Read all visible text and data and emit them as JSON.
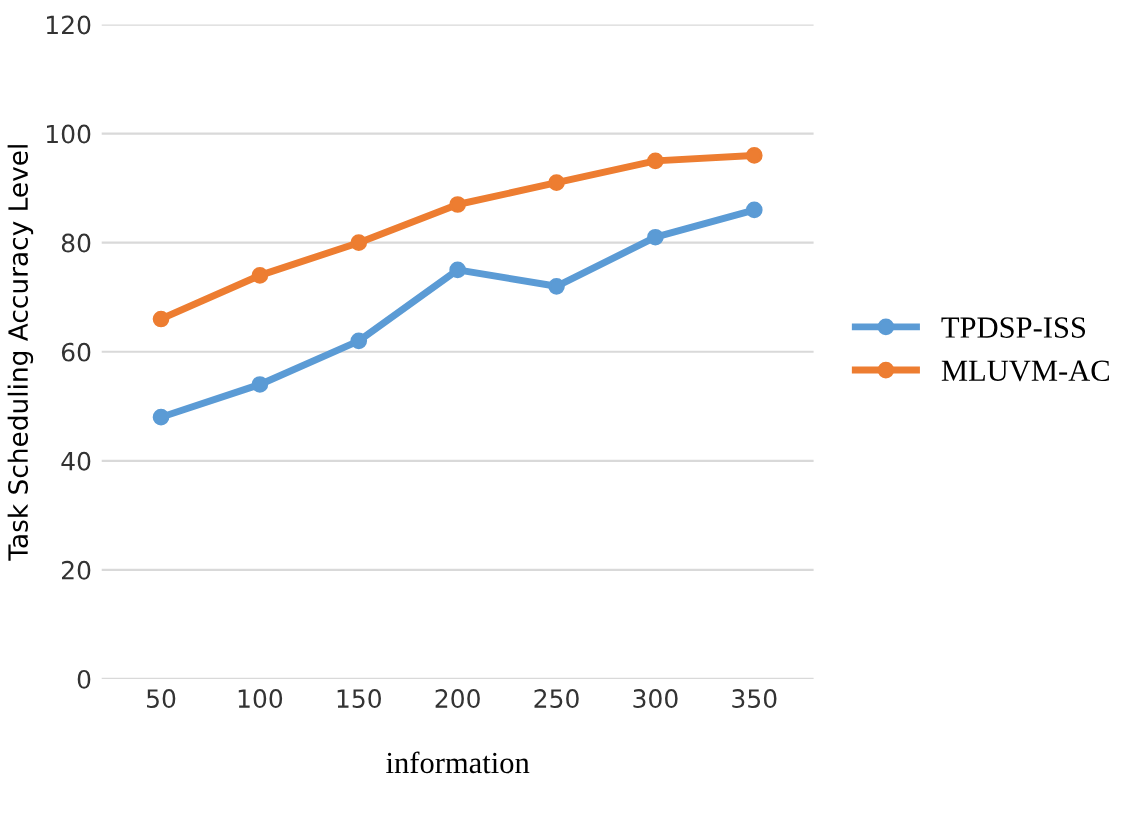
{
  "chart_data": {
    "type": "line",
    "xlabel": "information",
    "ylabel": "Task Scheduling Accuracy Level",
    "categories": [
      "50",
      "100",
      "150",
      "200",
      "250",
      "300",
      "350"
    ],
    "series": [
      {
        "name": "TPDSP-ISS",
        "color": "#5b9bd5",
        "values": [
          48,
          54,
          62,
          75,
          72,
          81,
          86
        ]
      },
      {
        "name": "MLUVM-AC",
        "color": "#ed7d31",
        "values": [
          66,
          74,
          80,
          87,
          91,
          95,
          96
        ]
      }
    ],
    "ylim": [
      0,
      120
    ],
    "yticks": [
      0,
      20,
      40,
      60,
      80,
      100,
      120
    ],
    "grid": "y",
    "legend": "right",
    "marker": "circle",
    "line_style": "solid"
  }
}
